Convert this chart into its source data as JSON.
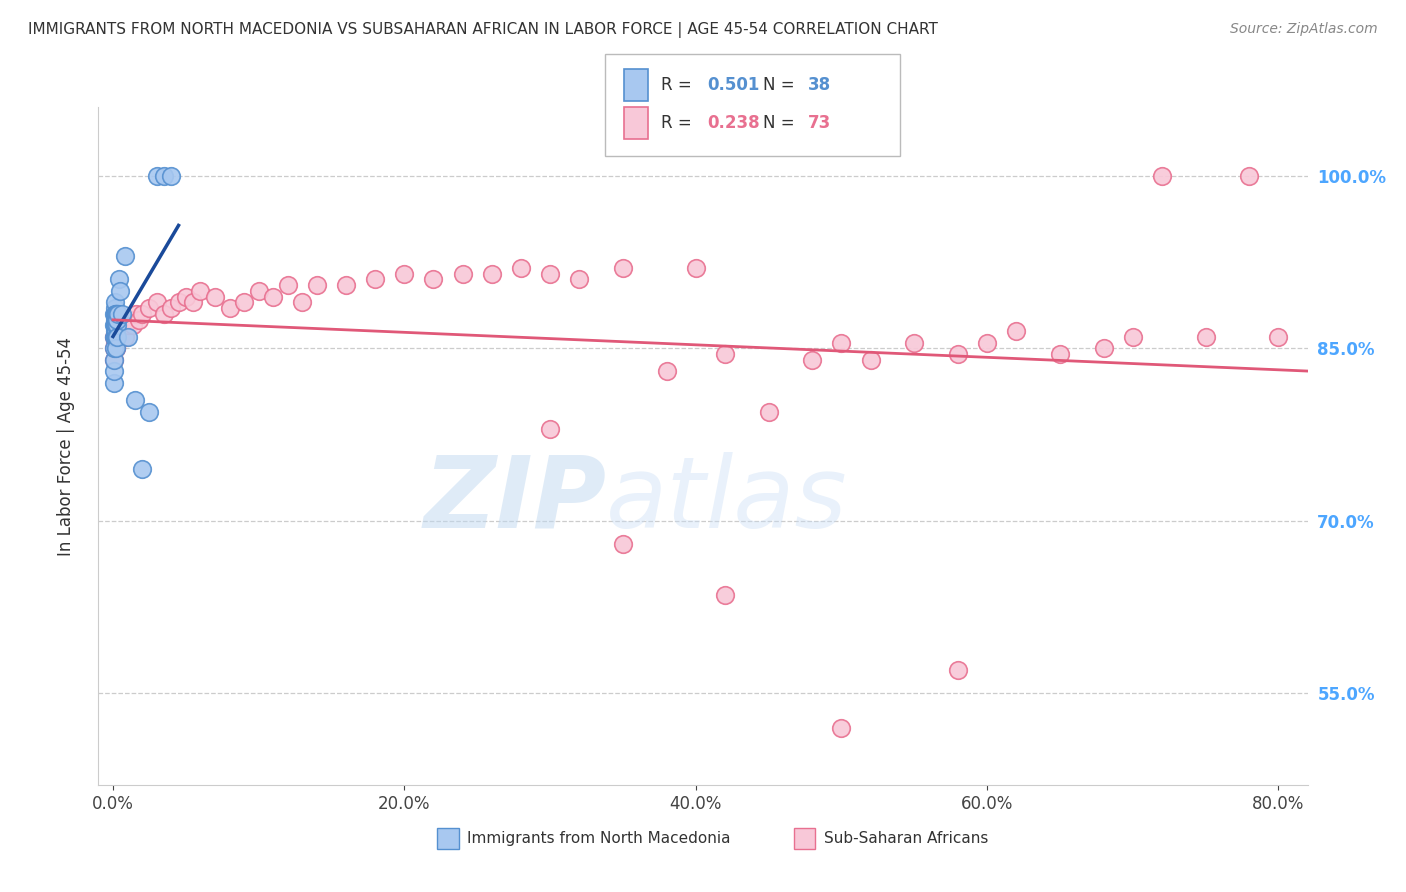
{
  "title": "IMMIGRANTS FROM NORTH MACEDONIA VS SUBSAHARAN AFRICAN IN LABOR FORCE | AGE 45-54 CORRELATION CHART",
  "source": "Source: ZipAtlas.com",
  "xlabel_ticks": [
    "0.0%",
    "20.0%",
    "40.0%",
    "60.0%",
    "80.0%"
  ],
  "xlabel_vals": [
    0.0,
    20.0,
    40.0,
    60.0,
    80.0
  ],
  "ylabel_ticks": [
    "55.0%",
    "70.0%",
    "85.0%",
    "100.0%"
  ],
  "ylabel_vals": [
    55.0,
    70.0,
    85.0,
    100.0
  ],
  "xlim": [
    -1.0,
    82.0
  ],
  "ylim": [
    47.0,
    106.0
  ],
  "ylabel_label": "In Labor Force | Age 45-54",
  "legend_blue_label": "Immigrants from North Macedonia",
  "legend_pink_label": "Sub-Saharan Africans",
  "R_blue": "0.501",
  "N_blue": "38",
  "R_pink": "0.238",
  "N_pink": "73",
  "blue_color": "#a8c8f0",
  "blue_edge": "#5590d0",
  "blue_line": "#1a4a9a",
  "pink_color": "#f8c8d8",
  "pink_edge": "#e87090",
  "pink_line": "#e05878",
  "watermark_zip": "ZIP",
  "watermark_atlas": "atlas",
  "background_color": "#ffffff",
  "grid_color": "#cccccc",
  "blue_x": [
    0.05,
    0.06,
    0.07,
    0.08,
    0.09,
    0.1,
    0.1,
    0.11,
    0.12,
    0.13,
    0.14,
    0.15,
    0.15,
    0.16,
    0.17,
    0.18,
    0.19,
    0.2,
    0.2,
    0.21,
    0.22,
    0.23,
    0.25,
    0.27,
    0.28,
    0.3,
    0.35,
    0.4,
    0.5,
    0.6,
    0.8,
    1.0,
    1.5,
    2.0,
    2.5,
    3.0,
    3.5,
    4.0
  ],
  "blue_y": [
    82.0,
    83.0,
    84.0,
    85.0,
    86.0,
    87.0,
    88.0,
    86.5,
    87.5,
    88.5,
    89.0,
    87.0,
    88.0,
    86.0,
    87.0,
    88.0,
    86.5,
    87.5,
    86.0,
    85.0,
    87.0,
    88.0,
    87.0,
    88.0,
    86.0,
    87.5,
    88.0,
    91.0,
    90.0,
    88.0,
    93.0,
    86.0,
    80.5,
    74.5,
    79.5,
    100.0,
    100.0,
    100.0
  ],
  "pink_x": [
    0.05,
    0.07,
    0.1,
    0.12,
    0.15,
    0.18,
    0.2,
    0.23,
    0.25,
    0.28,
    0.3,
    0.35,
    0.4,
    0.45,
    0.5,
    0.6,
    0.7,
    0.8,
    1.0,
    1.2,
    1.4,
    1.6,
    1.8,
    2.0,
    2.5,
    3.0,
    3.5,
    4.0,
    4.5,
    5.0,
    5.5,
    6.0,
    7.0,
    8.0,
    9.0,
    10.0,
    11.0,
    12.0,
    13.0,
    14.0,
    16.0,
    18.0,
    20.0,
    22.0,
    24.0,
    26.0,
    28.0,
    30.0,
    32.0,
    35.0,
    38.0,
    40.0,
    42.0,
    45.0,
    48.0,
    50.0,
    52.0,
    55.0,
    58.0,
    60.0,
    62.0,
    65.0,
    68.0,
    70.0,
    72.0,
    75.0,
    78.0,
    80.0,
    30.0,
    35.0,
    42.0,
    50.0,
    58.0
  ],
  "pink_y": [
    84.0,
    85.0,
    86.0,
    85.5,
    86.0,
    85.0,
    86.5,
    85.0,
    86.0,
    87.0,
    86.0,
    87.0,
    86.5,
    87.0,
    86.0,
    87.0,
    87.5,
    86.0,
    87.0,
    87.5,
    87.0,
    88.0,
    87.5,
    88.0,
    88.5,
    89.0,
    88.0,
    88.5,
    89.0,
    89.5,
    89.0,
    90.0,
    89.5,
    88.5,
    89.0,
    90.0,
    89.5,
    90.5,
    89.0,
    90.5,
    90.5,
    91.0,
    91.5,
    91.0,
    91.5,
    91.5,
    92.0,
    91.5,
    91.0,
    92.0,
    83.0,
    92.0,
    84.5,
    79.5,
    84.0,
    85.5,
    84.0,
    85.5,
    84.5,
    85.5,
    86.5,
    84.5,
    85.0,
    86.0,
    100.0,
    86.0,
    100.0,
    86.0,
    78.0,
    68.0,
    63.5,
    52.0,
    57.0
  ]
}
